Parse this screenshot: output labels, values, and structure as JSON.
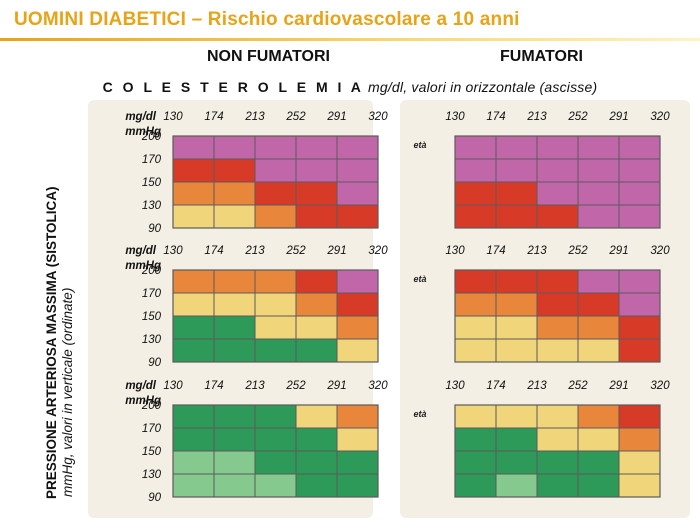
{
  "title": "UOMINI DIABETICI – Rischio cardiovascolare a 10 anni",
  "groups": {
    "left": "NON FUMATORI",
    "right": "FUMATORI"
  },
  "subtitle": {
    "spaced": "C O L E S T E R O L E M I A",
    "rest": " mg/dl, valori in orizzontale (ascisse)"
  },
  "y_title": {
    "main": "PRESSIONE ARTERIOSA MASSIMA (SISTOLICA)",
    "sub": "mmHg, valori in verticale (ordinate)"
  },
  "colors": {
    "purple": "#c266aa",
    "red": "#d83a28",
    "orange": "#e8873c",
    "yellow": "#f0d57a",
    "green": "#2e9a5a",
    "lightgreen": "#86c98e",
    "grid_line": "#5b5b5b",
    "panel_bg": "#f3efe4"
  },
  "chart_data": {
    "type": "heatmap",
    "x_unit": "mg/dl",
    "y_unit": "mmHg",
    "eta_label": "età",
    "x_ticks": [
      "130",
      "174",
      "213",
      "252",
      "291",
      "320"
    ],
    "y_ticks": [
      "200",
      "170",
      "150",
      "130",
      "90"
    ],
    "legend": {
      "purple": "",
      "red": "",
      "orange": "",
      "yellow": "",
      "green": "",
      "lightgreen": ""
    },
    "panels": [
      {
        "group": "NON FUMATORI",
        "row": 0,
        "cells": [
          [
            "purple",
            "purple",
            "purple",
            "purple",
            "purple"
          ],
          [
            "red",
            "red",
            "purple",
            "purple",
            "purple"
          ],
          [
            "orange",
            "orange",
            "red",
            "red",
            "purple"
          ],
          [
            "yellow",
            "yellow",
            "orange",
            "red",
            "red"
          ]
        ]
      },
      {
        "group": "FUMATORI",
        "row": 0,
        "cells": [
          [
            "purple",
            "purple",
            "purple",
            "purple",
            "purple"
          ],
          [
            "purple",
            "purple",
            "purple",
            "purple",
            "purple"
          ],
          [
            "red",
            "red",
            "purple",
            "purple",
            "purple"
          ],
          [
            "red",
            "red",
            "red",
            "purple",
            "purple"
          ]
        ]
      },
      {
        "group": "NON FUMATORI",
        "row": 1,
        "cells": [
          [
            "orange",
            "orange",
            "orange",
            "red",
            "purple"
          ],
          [
            "yellow",
            "yellow",
            "yellow",
            "orange",
            "red"
          ],
          [
            "green",
            "green",
            "yellow",
            "yellow",
            "orange"
          ],
          [
            "green",
            "green",
            "green",
            "green",
            "yellow"
          ]
        ]
      },
      {
        "group": "FUMATORI",
        "row": 1,
        "cells": [
          [
            "red",
            "red",
            "red",
            "purple",
            "purple"
          ],
          [
            "orange",
            "orange",
            "red",
            "red",
            "purple"
          ],
          [
            "yellow",
            "yellow",
            "orange",
            "orange",
            "red"
          ],
          [
            "yellow",
            "yellow",
            "yellow",
            "yellow",
            "red"
          ]
        ]
      },
      {
        "group": "NON FUMATORI",
        "row": 2,
        "cells": [
          [
            "green",
            "green",
            "green",
            "yellow",
            "orange"
          ],
          [
            "green",
            "green",
            "green",
            "green",
            "yellow"
          ],
          [
            "lightgreen",
            "lightgreen",
            "green",
            "green",
            "green"
          ],
          [
            "lightgreen",
            "lightgreen",
            "lightgreen",
            "green",
            "green"
          ]
        ]
      },
      {
        "group": "FUMATORI",
        "row": 2,
        "cells": [
          [
            "yellow",
            "yellow",
            "yellow",
            "orange",
            "red"
          ],
          [
            "green",
            "green",
            "yellow",
            "yellow",
            "orange"
          ],
          [
            "green",
            "green",
            "green",
            "green",
            "yellow"
          ],
          [
            "green",
            "lightgreen",
            "green",
            "green",
            "yellow"
          ]
        ]
      }
    ]
  }
}
